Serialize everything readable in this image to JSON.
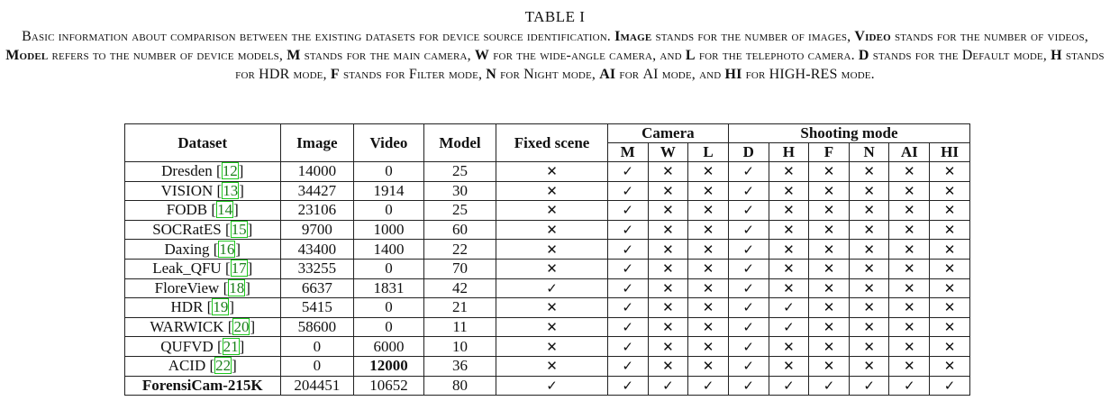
{
  "caption": {
    "table_number": "TABLE I",
    "segments": [
      {
        "t": "Basic information about comparison between the existing datasets for device source identification. ",
        "b": false
      },
      {
        "t": "Image",
        "b": true
      },
      {
        "t": " stands for the number of images, ",
        "b": false
      },
      {
        "t": "Video",
        "b": true
      },
      {
        "t": " stands for the number of videos, ",
        "b": false
      },
      {
        "t": "Model",
        "b": true
      },
      {
        "t": " refers to the number of device models, ",
        "b": false
      },
      {
        "t": "M",
        "b": true
      },
      {
        "t": " stands for the main camera, ",
        "b": false
      },
      {
        "t": "W",
        "b": true
      },
      {
        "t": " for the wide-angle camera, and ",
        "b": false
      },
      {
        "t": "L",
        "b": true
      },
      {
        "t": " for the telephoto camera. ",
        "b": false
      },
      {
        "t": "D",
        "b": true
      },
      {
        "t": " stands for the Default mode, ",
        "b": false
      },
      {
        "t": "H",
        "b": true
      },
      {
        "t": " stands for ",
        "b": false
      },
      {
        "t": "HDR",
        "b": false,
        "nsc": true
      },
      {
        "t": " mode, ",
        "b": false
      },
      {
        "t": "F",
        "b": true
      },
      {
        "t": " stands for Filter mode, ",
        "b": false
      },
      {
        "t": "N",
        "b": true
      },
      {
        "t": " for Night mode, ",
        "b": false
      },
      {
        "t": "AI",
        "b": true,
        "nsc": true
      },
      {
        "t": " for ",
        "b": false
      },
      {
        "t": "AI",
        "b": false,
        "nsc": true
      },
      {
        "t": " mode, and ",
        "b": false
      },
      {
        "t": "HI",
        "b": true,
        "nsc": true
      },
      {
        "t": " for ",
        "b": false
      },
      {
        "t": "HIGH-RES",
        "b": false,
        "nsc": true
      },
      {
        "t": " mode.",
        "b": false
      }
    ]
  },
  "table": {
    "headers": {
      "dataset": "Dataset",
      "image": "Image",
      "video": "Video",
      "model": "Model",
      "fixed_scene": "Fixed scene",
      "camera_group": "Camera",
      "shooting_group": "Shooting mode",
      "camera": [
        "M",
        "W",
        "L"
      ],
      "shooting": [
        "D",
        "H",
        "F",
        "N",
        "AI",
        "HI"
      ]
    },
    "rows": [
      {
        "name": "Dresden",
        "ref": "12",
        "image": "14000",
        "video": "0",
        "model": "25",
        "fixed": "✕",
        "camera": [
          "✓",
          "✕",
          "✕"
        ],
        "shooting": [
          "✓",
          "✕",
          "✕",
          "✕",
          "✕",
          "✕"
        ]
      },
      {
        "name": "VISION",
        "ref": "13",
        "image": "34427",
        "video": "1914",
        "model": "30",
        "fixed": "✕",
        "camera": [
          "✓",
          "✕",
          "✕"
        ],
        "shooting": [
          "✓",
          "✕",
          "✕",
          "✕",
          "✕",
          "✕"
        ]
      },
      {
        "name": "FODB",
        "ref": "14",
        "image": "23106",
        "video": "0",
        "model": "25",
        "fixed": "✕",
        "camera": [
          "✓",
          "✕",
          "✕"
        ],
        "shooting": [
          "✓",
          "✕",
          "✕",
          "✕",
          "✕",
          "✕"
        ]
      },
      {
        "name": "SOCRatES",
        "ref": "15",
        "image": "9700",
        "video": "1000",
        "model": "60",
        "fixed": "✕",
        "camera": [
          "✓",
          "✕",
          "✕"
        ],
        "shooting": [
          "✓",
          "✕",
          "✕",
          "✕",
          "✕",
          "✕"
        ]
      },
      {
        "name": "Daxing",
        "ref": "16",
        "image": "43400",
        "video": "1400",
        "model": "22",
        "fixed": "✕",
        "camera": [
          "✓",
          "✕",
          "✕"
        ],
        "shooting": [
          "✓",
          "✕",
          "✕",
          "✕",
          "✕",
          "✕"
        ]
      },
      {
        "name": "Leak_QFU",
        "ref": "17",
        "image": "33255",
        "video": "0",
        "model": "70",
        "fixed": "✕",
        "camera": [
          "✓",
          "✕",
          "✕"
        ],
        "shooting": [
          "✓",
          "✕",
          "✕",
          "✕",
          "✕",
          "✕"
        ]
      },
      {
        "name": "FloreView",
        "ref": "18",
        "image": "6637",
        "video": "1831",
        "model": "42",
        "fixed": "✓",
        "camera": [
          "✓",
          "✕",
          "✕"
        ],
        "shooting": [
          "✓",
          "✕",
          "✕",
          "✕",
          "✕",
          "✕"
        ]
      },
      {
        "name": "HDR",
        "ref": "19",
        "image": "5415",
        "video": "0",
        "model": "21",
        "fixed": "✕",
        "camera": [
          "✓",
          "✕",
          "✕"
        ],
        "shooting": [
          "✓",
          "✓",
          "✕",
          "✕",
          "✕",
          "✕"
        ]
      },
      {
        "name": "WARWICK",
        "ref": "20",
        "image": "58600",
        "video": "0",
        "model": "11",
        "fixed": "✕",
        "camera": [
          "✓",
          "✕",
          "✕"
        ],
        "shooting": [
          "✓",
          "✓",
          "✕",
          "✕",
          "✕",
          "✕"
        ]
      },
      {
        "name": "QUFVD",
        "ref": "21",
        "image": "0",
        "video": "6000",
        "model": "10",
        "fixed": "✕",
        "camera": [
          "✓",
          "✕",
          "✕"
        ],
        "shooting": [
          "✓",
          "✕",
          "✕",
          "✕",
          "✕",
          "✕"
        ]
      },
      {
        "name": "ACID",
        "ref": "22",
        "image": "0",
        "video": "12000",
        "model": "36",
        "fixed": "✕",
        "camera": [
          "✓",
          "✕",
          "✕"
        ],
        "shooting": [
          "✓",
          "✕",
          "✕",
          "✕",
          "✕",
          "✕"
        ],
        "bold": [
          "video"
        ]
      },
      {
        "name": "ForensiCam-215K",
        "ref": "",
        "image": "204451",
        "video": "10652",
        "model": "80",
        "fixed": "✓",
        "camera": [
          "✓",
          "✓",
          "✓"
        ],
        "shooting": [
          "✓",
          "✓",
          "✓",
          "✓",
          "✓",
          "✓"
        ],
        "bold": [
          "name",
          "image",
          "model"
        ]
      }
    ]
  }
}
